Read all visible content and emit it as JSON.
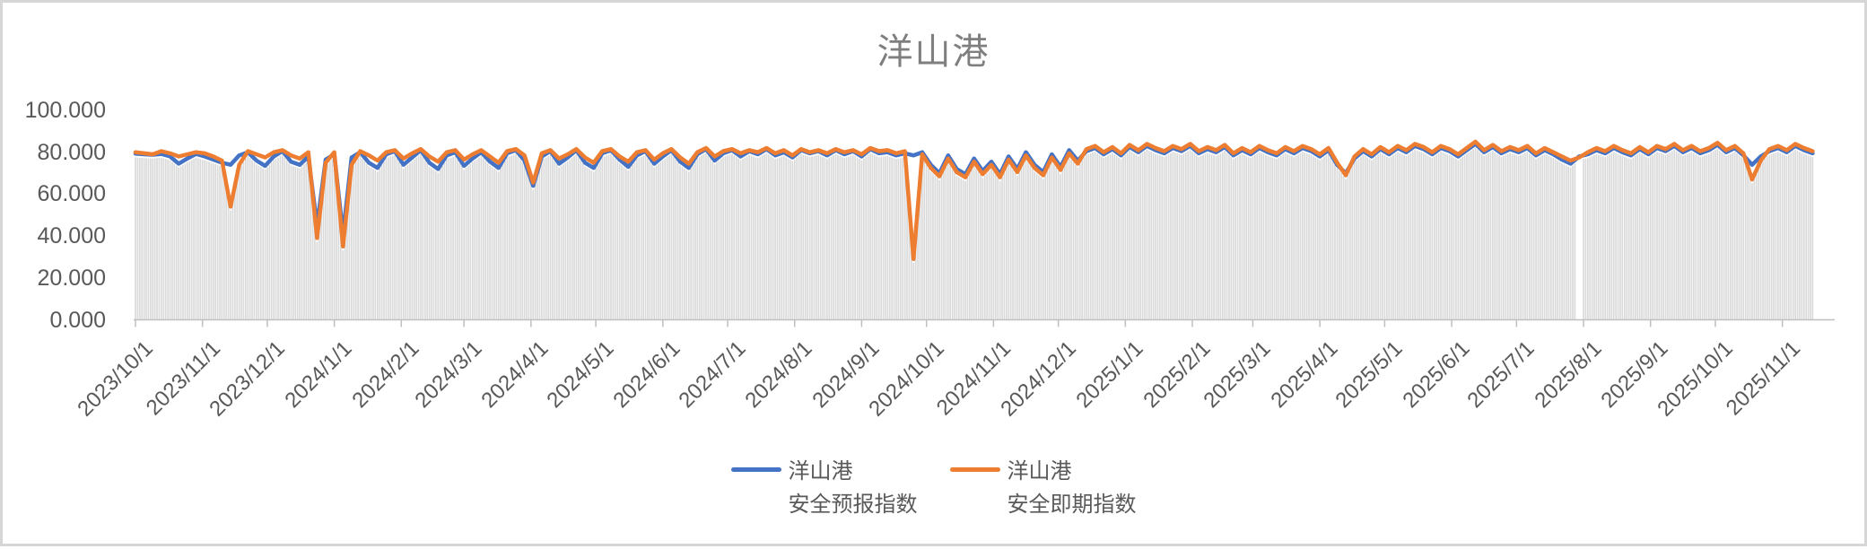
{
  "title": "洋山港",
  "y_axis": {
    "labels": [
      "100.000",
      "80.000",
      "60.000",
      "40.000",
      "20.000",
      "0.000"
    ],
    "values": [
      100,
      80,
      60,
      40,
      20,
      0
    ]
  },
  "x_axis": {
    "tick_labels": [
      "2023/10/1",
      "2023/11/1",
      "2023/12/1",
      "2024/1/1",
      "2024/2/1",
      "2024/3/1",
      "2024/4/1",
      "2024/5/1",
      "2024/6/1",
      "2024/7/1",
      "2024/8/1",
      "2024/9/1",
      "2024/10/1",
      "2024/11/1",
      "2024/12/1",
      "2025/1/1",
      "2025/2/1",
      "2025/3/1",
      "2025/4/1",
      "2025/5/1",
      "2025/6/1",
      "2025/7/1",
      "2025/8/1",
      "2025/9/1",
      "2025/10/1",
      "2025/11/1"
    ]
  },
  "legend": [
    {
      "line1": "洋山港",
      "line2": "安全预报指数",
      "color": "#4472C4"
    },
    {
      "line1": "洋山港",
      "line2": "安全即期指数",
      "color": "#ED7D31"
    }
  ],
  "colors": {
    "forecast_line": "#4472C4",
    "spot_line": "#ED7D31",
    "bars": "#dadada",
    "axis": "#bfbfbf",
    "axis_text": "#595959",
    "title_text": "#7f7f7f",
    "frame_border": "#d6d6d6"
  },
  "chart_data": {
    "type": "line",
    "title": "洋山港",
    "ylim": [
      0,
      100
    ],
    "y_tick_step": 20,
    "grid": false,
    "legend_position": "bottom",
    "x_start_date": "2023/10/1",
    "sample_interval_days": 4,
    "background_bars": "dense daily light-gray columns rising from 0 to just below the lower of the two lines",
    "data_gap": "short missing-data white strip in the bars near 2025/7/29",
    "series": [
      {
        "name": "洋山港 安全预报指数",
        "color": "#4472C4",
        "values": [
          79.3,
          79.0,
          78.8,
          79.2,
          78.0,
          74.5,
          77.0,
          79.2,
          78.0,
          76.5,
          75.0,
          74.0,
          78.5,
          80.0,
          76.0,
          73.5,
          78.0,
          80.5,
          75.5,
          74.0,
          78.0,
          45.0,
          76.5,
          79.0,
          41.0,
          77.5,
          80.0,
          75.0,
          72.5,
          79.0,
          80.5,
          74.0,
          77.5,
          81.0,
          75.0,
          72.0,
          78.5,
          80.0,
          73.5,
          77.0,
          80.0,
          75.5,
          72.5,
          79.5,
          81.0,
          76.0,
          64.0,
          78.0,
          80.5,
          74.5,
          77.5,
          81.0,
          75.0,
          72.5,
          79.5,
          81.0,
          76.5,
          73.0,
          78.5,
          80.5,
          74.5,
          78.0,
          81.0,
          75.5,
          72.5,
          79.0,
          81.5,
          76.0,
          79.5,
          81.0,
          78.0,
          80.5,
          79.0,
          81.5,
          78.5,
          80.0,
          77.5,
          81.0,
          79.5,
          80.5,
          78.5,
          81.0,
          79.0,
          80.5,
          78.0,
          81.5,
          79.5,
          80.0,
          78.5,
          79.5,
          78.5,
          80.0,
          74.0,
          70.0,
          78.5,
          72.0,
          69.5,
          77.0,
          71.0,
          75.5,
          69.5,
          78.0,
          72.0,
          80.0,
          74.0,
          70.5,
          79.0,
          73.0,
          81.0,
          76.0,
          80.5,
          82.0,
          79.0,
          81.5,
          78.5,
          82.5,
          80.0,
          83.0,
          81.0,
          79.5,
          82.0,
          80.5,
          83.0,
          79.5,
          81.5,
          80.0,
          82.5,
          78.5,
          81.0,
          79.0,
          82.0,
          80.0,
          78.5,
          81.5,
          79.5,
          82.0,
          80.5,
          78.0,
          81.0,
          74.0,
          70.0,
          77.0,
          80.5,
          78.0,
          81.5,
          79.0,
          82.0,
          80.0,
          83.0,
          81.5,
          79.0,
          82.0,
          80.5,
          78.0,
          81.0,
          84.0,
          80.0,
          82.5,
          79.5,
          81.5,
          80.0,
          82.0,
          78.5,
          81.0,
          79.0,
          76.5,
          74.5,
          78.0,
          79.0,
          81.0,
          79.5,
          82.0,
          80.0,
          78.5,
          81.5,
          79.0,
          82.0,
          80.5,
          83.0,
          80.0,
          82.0,
          79.5,
          81.0,
          83.5,
          80.0,
          82.0,
          78.5,
          74.0,
          78.0,
          80.5,
          82.0,
          80.0,
          83.0,
          81.0,
          79.5
        ]
      },
      {
        "name": "洋山港 安全即期指数",
        "color": "#ED7D31",
        "values": [
          80.0,
          79.5,
          79.0,
          80.5,
          79.5,
          78.0,
          79.0,
          80.0,
          79.5,
          78.0,
          76.0,
          54.0,
          74.0,
          80.5,
          79.0,
          77.5,
          80.0,
          81.0,
          78.5,
          77.0,
          80.0,
          39.0,
          75.0,
          80.0,
          35.0,
          74.0,
          80.5,
          78.5,
          76.0,
          80.0,
          81.0,
          77.0,
          79.5,
          81.5,
          78.0,
          75.5,
          80.0,
          81.0,
          76.5,
          79.0,
          81.0,
          78.0,
          75.0,
          80.5,
          81.5,
          78.5,
          65.5,
          79.5,
          81.0,
          77.0,
          79.0,
          81.5,
          77.5,
          75.0,
          80.5,
          81.5,
          78.0,
          75.5,
          80.0,
          81.0,
          76.5,
          79.5,
          81.5,
          77.5,
          74.5,
          80.0,
          82.0,
          78.0,
          80.5,
          81.5,
          79.5,
          81.0,
          80.0,
          82.0,
          79.5,
          81.0,
          78.5,
          81.5,
          80.0,
          81.0,
          79.5,
          81.5,
          80.0,
          81.0,
          79.0,
          82.0,
          80.5,
          81.0,
          79.5,
          80.5,
          29.0,
          79.0,
          72.5,
          68.5,
          77.0,
          70.5,
          68.0,
          75.5,
          69.5,
          74.0,
          68.0,
          76.5,
          70.5,
          78.5,
          72.5,
          69.0,
          77.5,
          71.5,
          79.5,
          74.5,
          81.5,
          83.0,
          80.0,
          82.5,
          79.5,
          83.5,
          81.0,
          84.0,
          82.0,
          80.5,
          83.0,
          81.5,
          84.0,
          80.5,
          82.5,
          81.0,
          83.5,
          79.5,
          82.0,
          80.0,
          83.0,
          81.0,
          79.5,
          82.5,
          80.5,
          83.0,
          81.5,
          79.0,
          82.0,
          75.0,
          69.0,
          78.0,
          81.5,
          79.0,
          82.5,
          80.0,
          83.0,
          81.0,
          84.0,
          82.5,
          80.0,
          83.0,
          81.5,
          79.0,
          82.0,
          85.0,
          81.0,
          83.5,
          80.5,
          82.5,
          81.0,
          83.0,
          79.5,
          82.0,
          80.0,
          78.0,
          76.0,
          77.5,
          80.0,
          82.0,
          80.5,
          83.0,
          81.0,
          79.5,
          82.5,
          80.0,
          83.0,
          81.5,
          84.0,
          81.0,
          83.0,
          80.5,
          82.0,
          84.5,
          81.0,
          83.0,
          79.5,
          67.0,
          76.0,
          81.5,
          83.0,
          81.0,
          84.0,
          82.0,
          80.5
        ]
      }
    ]
  }
}
